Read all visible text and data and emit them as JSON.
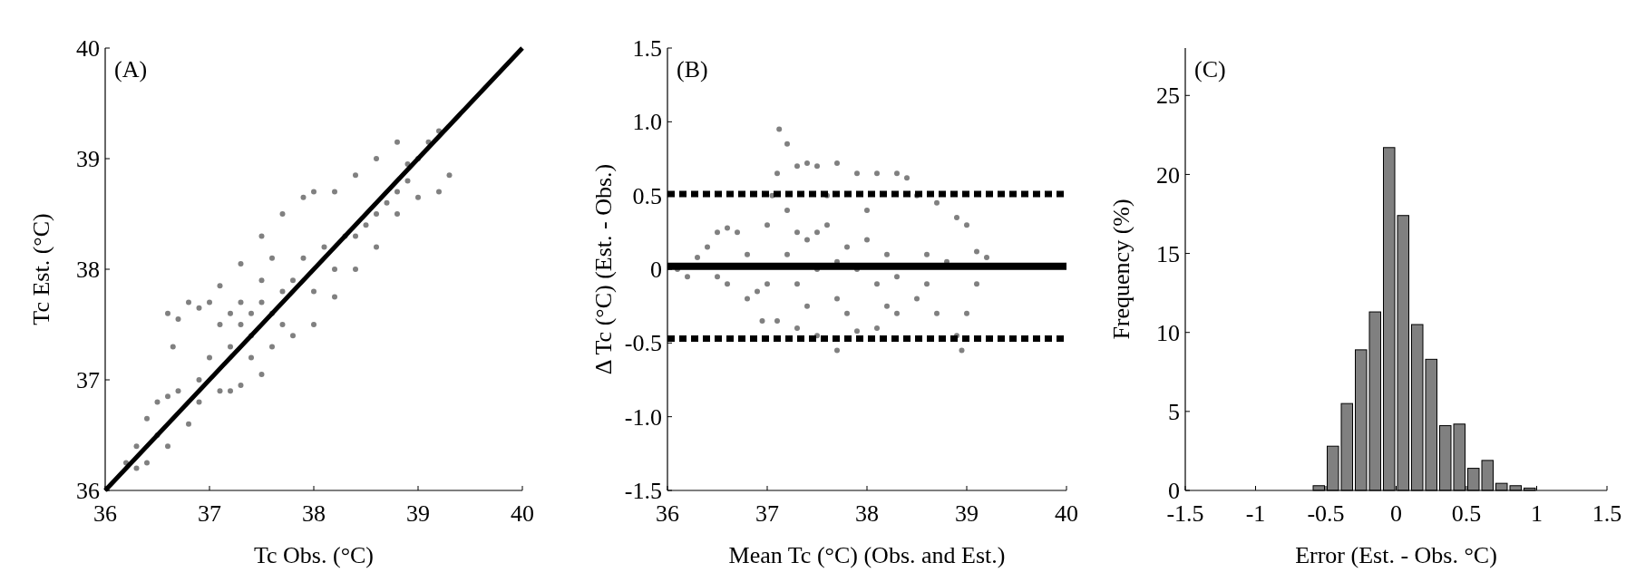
{
  "chart_data": [
    {
      "type": "scatter",
      "title": "(A)",
      "xlabel": "Tc Obs. (°C)",
      "ylabel": "Tc Est. (°C)",
      "xlim": [
        36,
        40
      ],
      "ylim": [
        36,
        40
      ],
      "xticks": [
        36,
        37,
        38,
        39,
        40
      ],
      "yticks": [
        36,
        37,
        38,
        39,
        40
      ],
      "marker": "circle",
      "series": [
        {
          "color": "#808080",
          "x": [
            36.2,
            36.3,
            36.4,
            36.5,
            36.6,
            36.7,
            36.65,
            36.7,
            36.6,
            36.8,
            36.9,
            37.0,
            37.1,
            37.3,
            37.5,
            37.7,
            37.9,
            38.0,
            38.2,
            38.4,
            38.6,
            38.8,
            38.9,
            39.1,
            39.2,
            39.3,
            39.2,
            39.0,
            38.8,
            38.6,
            38.4,
            38.2,
            38.0,
            37.8,
            37.6,
            37.5,
            37.3,
            37.2,
            37.1,
            36.9,
            36.8,
            36.6,
            36.4,
            36.3,
            37.2,
            37.3,
            37.4,
            37.5,
            37.6,
            37.7,
            37.8,
            37.4,
            37.3,
            37.2,
            37.5,
            37.6,
            37.9,
            38.1,
            38.3,
            38.5,
            38.7,
            38.9,
            37.0,
            37.1,
            37.4,
            37.7,
            38.0,
            38.2,
            38.4,
            38.6,
            38.8,
            39.0,
            36.9,
            36.5
          ],
          "values": [
            36.25,
            36.4,
            36.65,
            36.8,
            36.85,
            36.9,
            37.3,
            37.55,
            37.6,
            37.7,
            37.65,
            37.7,
            37.85,
            38.05,
            38.3,
            38.5,
            38.65,
            38.7,
            38.7,
            38.85,
            39.0,
            39.15,
            38.95,
            39.15,
            39.25,
            38.85,
            38.7,
            38.65,
            38.5,
            38.2,
            38.0,
            37.75,
            37.5,
            37.4,
            37.3,
            37.05,
            36.95,
            36.9,
            36.9,
            36.8,
            36.6,
            36.4,
            36.25,
            36.2,
            37.3,
            37.5,
            37.6,
            37.7,
            37.6,
            37.8,
            37.9,
            37.4,
            37.7,
            37.6,
            37.9,
            38.1,
            38.1,
            38.2,
            38.3,
            38.4,
            38.6,
            38.8,
            37.2,
            37.5,
            37.2,
            37.5,
            37.8,
            38.0,
            38.3,
            38.5,
            38.7,
            39.0,
            37.0,
            36.5
          ]
        },
        {
          "type": "line",
          "color": "#000000",
          "line_style": "solid",
          "marker": "none",
          "x": [
            36,
            40
          ],
          "values": [
            36,
            40
          ]
        }
      ]
    },
    {
      "type": "scatter",
      "title": "(B)",
      "xlabel": "Mean Tc (°C) (Obs. and Est.)",
      "ylabel": "Δ Tc (°C) (Est. - Obs.)",
      "xlim": [
        36,
        40
      ],
      "ylim": [
        -1.5,
        1.5
      ],
      "xticks": [
        36,
        37,
        38,
        39,
        40
      ],
      "yticks": [
        -1.5,
        {
          "value": -1.0,
          "label": "-1.0"
        },
        -0.5,
        0,
        0.5,
        {
          "value": 1.0,
          "label": "1.0"
        },
        1.5
      ],
      "marker": "circle",
      "series": [
        {
          "color": "#808080",
          "x": [
            36.1,
            36.2,
            36.3,
            36.4,
            36.5,
            36.6,
            36.7,
            36.8,
            36.6,
            36.5,
            36.8,
            36.9,
            37.0,
            37.0,
            37.05,
            37.1,
            37.12,
            37.2,
            37.3,
            37.4,
            37.5,
            37.7,
            37.9,
            38.1,
            38.3,
            38.4,
            38.5,
            38.7,
            38.9,
            39.0,
            39.1,
            39.2,
            39.1,
            39.0,
            38.9,
            38.95,
            38.7,
            38.5,
            38.3,
            38.1,
            37.9,
            37.7,
            37.5,
            37.3,
            37.1,
            36.95,
            37.2,
            37.3,
            37.4,
            37.5,
            37.6,
            37.7,
            37.8,
            37.9,
            38.0,
            38.1,
            38.2,
            38.3,
            37.2,
            37.4,
            37.6,
            37.8,
            38.0,
            38.2,
            38.6,
            38.8,
            38.6,
            37.5,
            37.7,
            37.3
          ],
          "values": [
            0.0,
            -0.05,
            0.08,
            0.15,
            0.25,
            0.28,
            0.25,
            0.1,
            -0.1,
            -0.05,
            -0.2,
            -0.15,
            -0.1,
            0.3,
            0.5,
            0.65,
            0.95,
            0.85,
            0.7,
            0.72,
            0.7,
            0.72,
            0.65,
            0.65,
            0.65,
            0.62,
            0.5,
            0.45,
            0.35,
            0.3,
            0.12,
            0.08,
            -0.1,
            -0.3,
            -0.45,
            -0.55,
            -0.3,
            -0.2,
            -0.3,
            -0.4,
            -0.42,
            -0.55,
            -0.45,
            -0.4,
            -0.35,
            -0.35,
            0.1,
            -0.1,
            0.2,
            0.0,
            0.3,
            -0.2,
            0.15,
            0.0,
            0.2,
            -0.1,
            0.1,
            -0.05,
            0.4,
            -0.25,
            0.5,
            -0.3,
            0.4,
            -0.25,
            0.1,
            0.05,
            -0.1,
            0.25,
            0.05,
            0.25
          ]
        }
      ],
      "ref_lines": [
        {
          "axis": "y",
          "value": 0.02,
          "color": "#000000",
          "line_style": "solid"
        },
        {
          "axis": "y",
          "value": 0.51,
          "color": "#000000",
          "line_style": "dashed"
        },
        {
          "axis": "y",
          "value": -0.47,
          "color": "#000000",
          "line_style": "dashed"
        }
      ]
    },
    {
      "type": "histogram",
      "title": "(C)",
      "xlabel": "Error (Est. - Obs. °C)",
      "ylabel": "Frequency (%)",
      "xlim": [
        -1.5,
        1.5
      ],
      "ylim": [
        0,
        28
      ],
      "xticks": [
        -1.5,
        -1,
        -0.5,
        0,
        0.5,
        1,
        1.5
      ],
      "yticks": [
        0,
        5,
        10,
        15,
        20,
        25
      ],
      "color": "#808080",
      "bins": [
        -0.6,
        -0.5,
        -0.4,
        -0.3,
        -0.2,
        -0.1,
        0,
        0.1,
        0.2,
        0.3,
        0.4,
        0.5,
        0.6,
        0.7,
        0.8,
        0.9,
        1.0
      ],
      "values": [
        0.3,
        2.8,
        5.5,
        8.9,
        11.3,
        21.7,
        17.4,
        10.5,
        8.3,
        4.1,
        4.2,
        1.4,
        1.9,
        0.45,
        0.3,
        0.15
      ]
    }
  ]
}
